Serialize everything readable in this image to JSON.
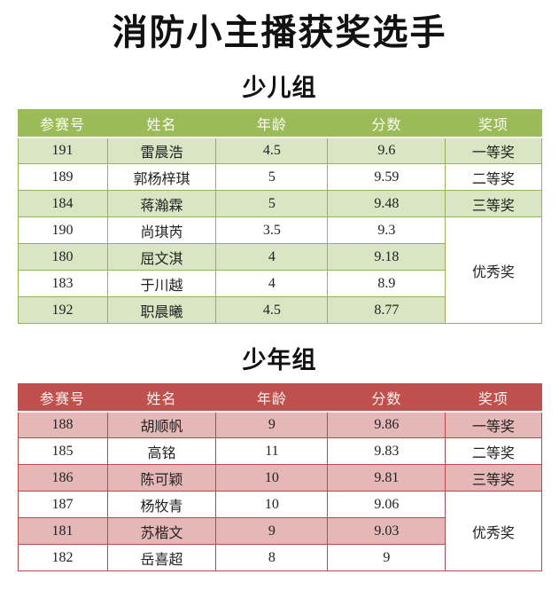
{
  "page_title": "消防小主播获奖选手",
  "groups": [
    {
      "heading": "少儿组",
      "columns": [
        "参赛号",
        "姓名",
        "年龄",
        "分数",
        "奖项"
      ],
      "theme": {
        "header_bg": "#9bbb59",
        "header_text": "#ffffff",
        "stripe_bg": "#d9e5c3",
        "border": "#94b354"
      },
      "rows": [
        {
          "no": "191",
          "name": "雷晨浩",
          "age": "4.5",
          "score": "9.6",
          "award": "一等奖"
        },
        {
          "no": "189",
          "name": "郭杨梓琪",
          "age": "5",
          "score": "9.59",
          "award": "二等奖"
        },
        {
          "no": "184",
          "name": "蒋瀚霖",
          "age": "5",
          "score": "9.48",
          "award": "三等奖"
        },
        {
          "no": "190",
          "name": "尚琪芮",
          "age": "3.5",
          "score": "9.3"
        },
        {
          "no": "180",
          "name": "屈文淇",
          "age": "4",
          "score": "9.18"
        },
        {
          "no": "183",
          "name": "于川越",
          "age": "4",
          "score": "8.9"
        },
        {
          "no": "192",
          "name": "职晨曦",
          "age": "4.5",
          "score": "8.77"
        }
      ],
      "merged_award": {
        "label": "优秀奖",
        "rowspan": 4
      }
    },
    {
      "heading": "少年组",
      "columns": [
        "参赛号",
        "姓名",
        "年龄",
        "分数",
        "奖项"
      ],
      "theme": {
        "header_bg": "#c0504d",
        "header_text": "#ffffff",
        "stripe_bg": "#e5b8b7",
        "border": "#b94a48"
      },
      "rows": [
        {
          "no": "188",
          "name": "胡顺帆",
          "age": "9",
          "score": "9.86",
          "award": "一等奖"
        },
        {
          "no": "185",
          "name": "高铭",
          "age": "11",
          "score": "9.83",
          "award": "二等奖"
        },
        {
          "no": "186",
          "name": "陈可颖",
          "age": "10",
          "score": "9.81",
          "award": "三等奖"
        },
        {
          "no": "187",
          "name": "杨牧青",
          "age": "10",
          "score": "9.06"
        },
        {
          "no": "181",
          "name": "苏楷文",
          "age": "9",
          "score": "9.03"
        },
        {
          "no": "182",
          "name": "岳喜超",
          "age": "8",
          "score": "9"
        }
      ],
      "merged_award": {
        "label": "优秀奖",
        "rowspan": 3
      }
    }
  ]
}
